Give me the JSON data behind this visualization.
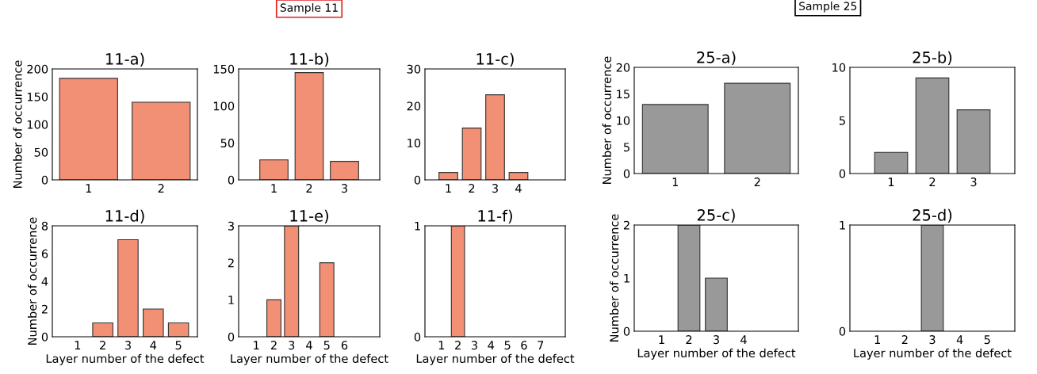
{
  "chart_data": [
    {
      "type": "bar",
      "title": "11-a)",
      "ylabel": "Number of occurrence",
      "x": [
        1,
        2
      ],
      "values": [
        183,
        140
      ],
      "color": "#f29075",
      "xlim": [
        0.5,
        2.5
      ],
      "xticks": [
        1,
        2
      ],
      "ylim": [
        0,
        200
      ],
      "yticks": [
        0,
        50,
        100,
        150,
        200
      ]
    },
    {
      "type": "bar",
      "title": "11-b)",
      "annotations": [
        "Sample 11"
      ],
      "x": [
        1,
        2,
        3
      ],
      "values": [
        27,
        145,
        25
      ],
      "color": "#f29075",
      "xlim": [
        0,
        4
      ],
      "xticks": [
        1,
        2,
        3
      ],
      "ylim": [
        0,
        150
      ],
      "yticks": [
        0,
        50,
        100,
        150
      ]
    },
    {
      "type": "bar",
      "title": "11-c)",
      "x": [
        1,
        2,
        3,
        4
      ],
      "values": [
        2,
        14,
        23,
        2
      ],
      "color": "#f29075",
      "xlim": [
        0,
        6
      ],
      "xticks": [
        1,
        2,
        3,
        4
      ],
      "ylim": [
        0,
        30
      ],
      "yticks": [
        0,
        10,
        20,
        30
      ]
    },
    {
      "type": "bar",
      "title": "11-d)",
      "ylabel": "Number of occurrence",
      "xlabel": "Layer number of the defect",
      "x": [
        2,
        3,
        4,
        5
      ],
      "values": [
        1,
        7,
        2,
        1
      ],
      "color": "#f29075",
      "xlim": [
        0,
        5.75
      ],
      "xticks": [
        1,
        2,
        3,
        4,
        5
      ],
      "ylim": [
        0,
        8
      ],
      "yticks": [
        0,
        2,
        4,
        6,
        8
      ]
    },
    {
      "type": "bar",
      "title": "11-e)",
      "xlabel": "Layer number of the defect",
      "x": [
        2,
        3,
        5
      ],
      "values": [
        1,
        3,
        2
      ],
      "color": "#f29075",
      "xlim": [
        0,
        8
      ],
      "xticks": [
        1,
        2,
        3,
        4,
        5,
        6
      ],
      "ylim": [
        0,
        3
      ],
      "yticks": [
        0,
        1,
        2,
        3
      ]
    },
    {
      "type": "bar",
      "title": "11-f)",
      "xlabel": "Layer number of the defect",
      "x": [
        2
      ],
      "values": [
        1
      ],
      "color": "#f29075",
      "xlim": [
        0,
        8.5
      ],
      "xticks": [
        1,
        2,
        3,
        4,
        5,
        6,
        7
      ],
      "ylim": [
        0,
        1
      ],
      "yticks": [
        0,
        1
      ]
    },
    {
      "type": "bar",
      "title": "25-a)",
      "ylabel": "Number of occurrence",
      "annotations": [
        "Sample 25"
      ],
      "x": [
        1,
        2
      ],
      "values": [
        13,
        17
      ],
      "color": "#999999",
      "xlim": [
        0.5,
        2.5
      ],
      "xticks": [
        1,
        2
      ],
      "ylim": [
        0,
        20
      ],
      "yticks": [
        0,
        5,
        10,
        15,
        20
      ]
    },
    {
      "type": "bar",
      "title": "25-b)",
      "x": [
        1,
        2,
        3
      ],
      "values": [
        2,
        9,
        6
      ],
      "color": "#999999",
      "xlim": [
        0,
        4
      ],
      "xticks": [
        1,
        2,
        3
      ],
      "ylim": [
        0,
        10
      ],
      "yticks": [
        0,
        5,
        10
      ]
    },
    {
      "type": "bar",
      "title": "25-c)",
      "ylabel": "Number of occurrence",
      "xlabel": "Layer number of the defect",
      "x": [
        2,
        3
      ],
      "values": [
        2,
        1
      ],
      "color": "#999999",
      "xlim": [
        0,
        6
      ],
      "xticks": [
        1,
        2,
        3,
        4
      ],
      "ylim": [
        0,
        2
      ],
      "yticks": [
        0,
        1,
        2
      ]
    },
    {
      "type": "bar",
      "title": "25-d)",
      "xlabel": "Layer number of the defect",
      "x": [
        3
      ],
      "values": [
        1
      ],
      "color": "#999999",
      "xlim": [
        0,
        6
      ],
      "xticks": [
        1,
        2,
        3,
        4,
        5
      ],
      "ylim": [
        0,
        1
      ],
      "yticks": [
        0,
        1
      ]
    }
  ]
}
